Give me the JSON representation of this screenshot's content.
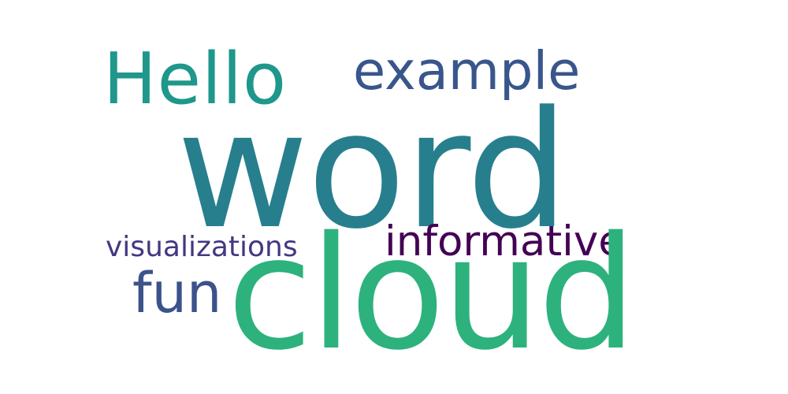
{
  "words": {
    "word": {
      "text": "word",
      "color": "#277f8e"
    },
    "cloud": {
      "text": "cloud",
      "color": "#2db27d"
    },
    "hello": {
      "text": "Hello",
      "color": "#1f978b"
    },
    "example": {
      "text": "example",
      "color": "#39568c"
    },
    "informative": {
      "text": "informative",
      "color": "#440154"
    },
    "visualizations": {
      "text": "visualizations",
      "color": "#453781"
    },
    "fun": {
      "text": "fun",
      "color": "#3b528b"
    }
  }
}
